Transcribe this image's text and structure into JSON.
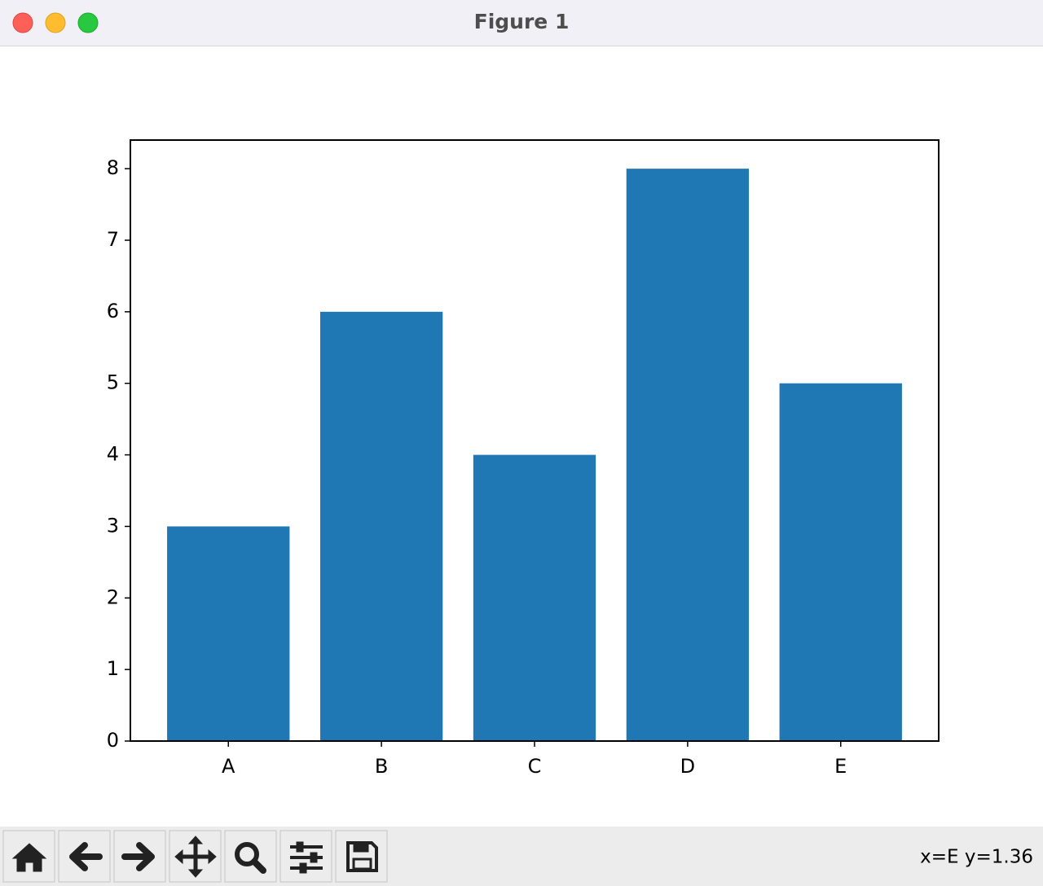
{
  "window": {
    "title": "Figure 1"
  },
  "chart_data": {
    "type": "bar",
    "categories": [
      "A",
      "B",
      "C",
      "D",
      "E"
    ],
    "values": [
      3,
      6,
      4,
      8,
      5
    ],
    "color": "#1f77b4",
    "ylim": [
      0,
      8.4
    ],
    "yticks": [
      0,
      1,
      2,
      3,
      4,
      5,
      6,
      7,
      8
    ],
    "grid": false
  },
  "status": "x=E y=1.36"
}
